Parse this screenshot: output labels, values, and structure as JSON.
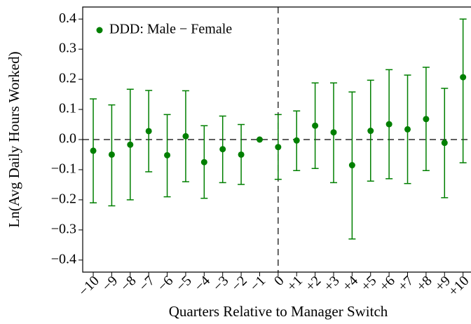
{
  "chart_data": {
    "type": "errorbar",
    "xlabel": "Quarters Relative to Manager Switch",
    "ylabel": "Ln(Avg Daily Hours Worked)",
    "x": [
      -10,
      -9,
      -8,
      -7,
      -6,
      -5,
      -4,
      -3,
      -2,
      -1,
      0,
      1,
      2,
      3,
      4,
      5,
      6,
      7,
      8,
      9,
      10
    ],
    "series": [
      {
        "name": "DDD: Male − Female",
        "color": "#007f00",
        "values": [
          -0.037,
          -0.05,
          -0.017,
          0.028,
          -0.052,
          0.011,
          -0.075,
          -0.032,
          -0.05,
          0,
          -0.025,
          -0.003,
          0.046,
          0.024,
          -0.085,
          0.029,
          0.051,
          0.034,
          0.068,
          -0.011,
          0.207
        ],
        "ci_low": [
          -0.21,
          -0.22,
          -0.2,
          -0.107,
          -0.19,
          -0.14,
          -0.195,
          -0.143,
          -0.149,
          null,
          -0.132,
          -0.103,
          -0.096,
          -0.143,
          -0.33,
          -0.138,
          -0.13,
          -0.146,
          -0.103,
          -0.193,
          -0.077
        ],
        "ci_high": [
          0.135,
          0.115,
          0.167,
          0.163,
          0.083,
          0.162,
          0.046,
          0.078,
          0.05,
          null,
          0.083,
          0.095,
          0.188,
          0.188,
          0.158,
          0.197,
          0.232,
          0.214,
          0.24,
          0.17,
          0.4
        ]
      }
    ],
    "xlim": [
      -10.57,
      10.43
    ],
    "ylim": [
      -0.44,
      0.44
    ],
    "xticks": [
      {
        "value": -10,
        "label": "−10"
      },
      {
        "value": -9,
        "label": "−9"
      },
      {
        "value": -8,
        "label": "−8"
      },
      {
        "value": -7,
        "label": "−7"
      },
      {
        "value": -6,
        "label": "−6"
      },
      {
        "value": -5,
        "label": "−5"
      },
      {
        "value": -4,
        "label": "−4"
      },
      {
        "value": -3,
        "label": "−3"
      },
      {
        "value": -2,
        "label": "−2"
      },
      {
        "value": -1,
        "label": "−1"
      },
      0,
      {
        "value": 1,
        "label": "+1"
      },
      {
        "value": 2,
        "label": "+2"
      },
      {
        "value": 3,
        "label": "+3"
      },
      {
        "value": 4,
        "label": "+4"
      },
      {
        "value": 5,
        "label": "+5"
      },
      {
        "value": 6,
        "label": "+6"
      },
      {
        "value": 7,
        "label": "+7"
      },
      {
        "value": 8,
        "label": "+8"
      },
      {
        "value": 9,
        "label": "+9"
      },
      {
        "value": 10,
        "label": "+10"
      }
    ],
    "yticks": [
      {
        "value": -0.4,
        "label": "−0.4"
      },
      {
        "value": -0.3,
        "label": "−0.3"
      },
      {
        "value": -0.2,
        "label": "−0.2"
      },
      {
        "value": -0.1,
        "label": "−0.1"
      },
      {
        "value": 0,
        "label": "0.0"
      },
      0.1,
      0.2,
      0.3,
      0.4
    ],
    "hline": 0,
    "vline": 0,
    "legend": "upper left"
  }
}
